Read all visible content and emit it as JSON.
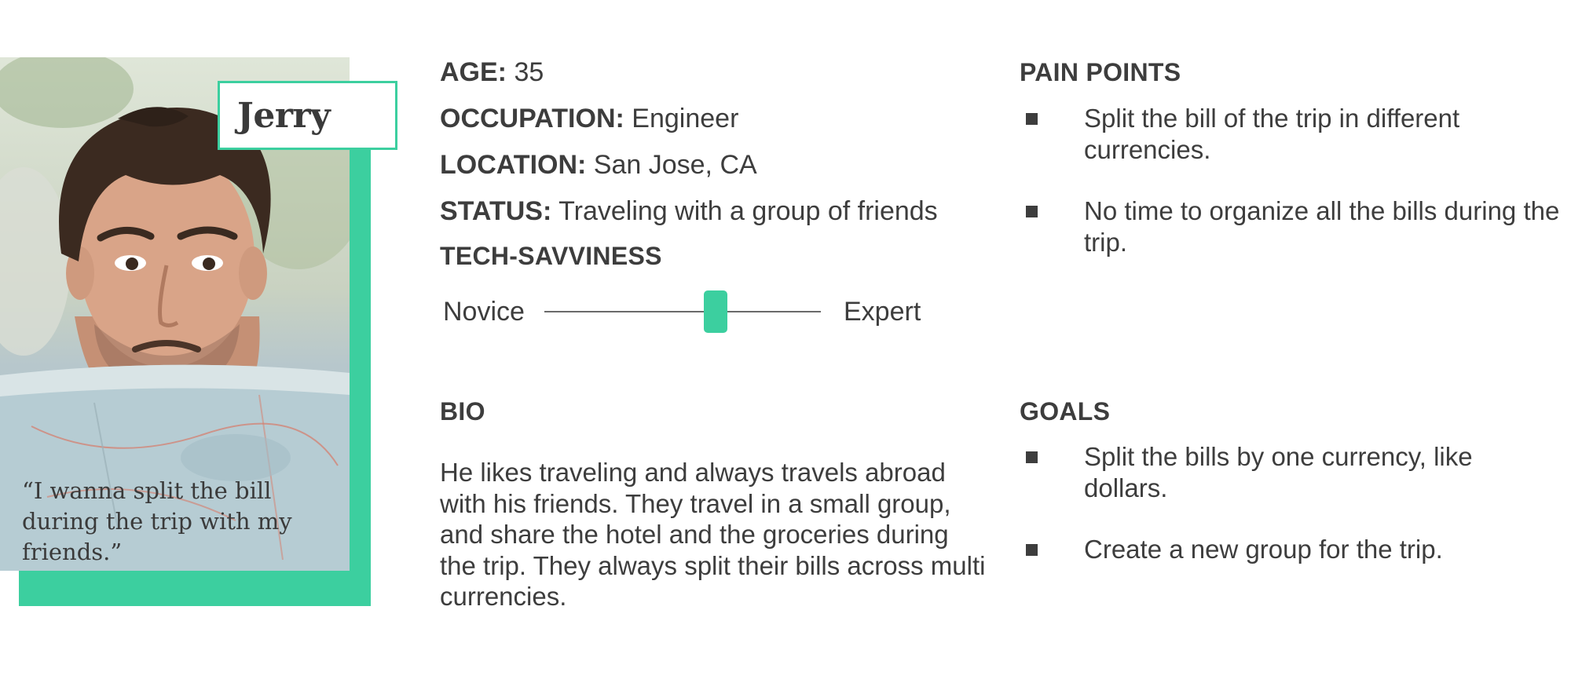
{
  "persona": {
    "name": "Jerry",
    "quote": "“I wanna split the bill during the trip with my friends.”",
    "colors": {
      "accent": "#3ccf9f",
      "text": "#3d3d3d"
    }
  },
  "details": {
    "age": {
      "label": "AGE:",
      "value": "35"
    },
    "occupation": {
      "label": "OCCUPATION:",
      "value": "Engineer"
    },
    "location": {
      "label": "LOCATION:",
      "value": "San Jose, CA"
    },
    "status": {
      "label": "STATUS:",
      "value": "Traveling with a group of friends"
    }
  },
  "tech": {
    "heading": "TECH-SAVVINESS",
    "min_label": "Novice",
    "max_label": "Expert",
    "level": 0.62
  },
  "bio": {
    "heading": "BIO",
    "text": "He likes traveling and always travels abroad with his friends. They travel in a small group, and share the hotel and the groceries during the trip. They always split their bills across multi currencies."
  },
  "pain_points": {
    "heading": "PAIN POINTS",
    "items": [
      "Split the bill of the trip in different currencies.",
      "No time to organize all the bills during the trip."
    ]
  },
  "goals": {
    "heading": "GOALS",
    "items": [
      "Split the bills by one currency, like dollars.",
      "Create a new group for the trip."
    ]
  }
}
